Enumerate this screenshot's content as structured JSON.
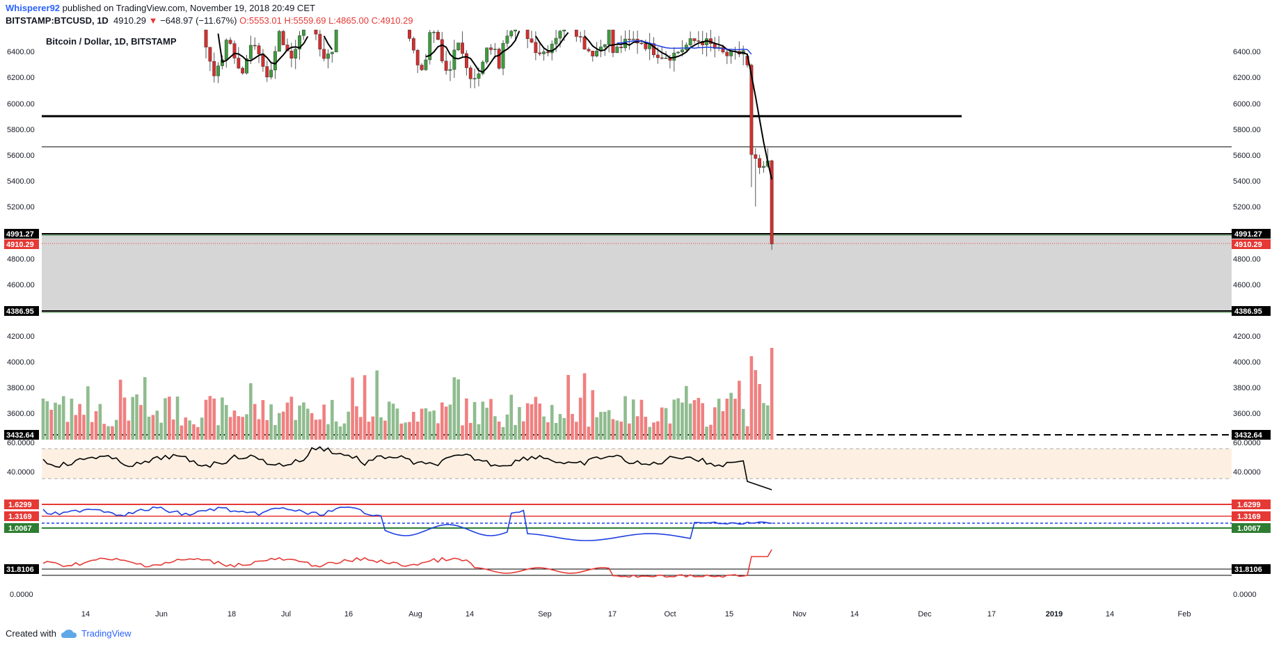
{
  "header": {
    "author": "Whisperer92",
    "published_text": "published on TradingView.com, November 19, 2018 20:49 CET",
    "symbol": "BITSTAMP:BTCUSD, 1D",
    "last": "4910.29",
    "change_arrow": "▼",
    "change": "−648.97 (−11.67%)",
    "open": "O:5553.01",
    "high": "H:5559.69",
    "low": "L:4865.00",
    "close": "C:4910.29"
  },
  "footer": {
    "created_with": "Created with",
    "brand": "TradingView",
    "logo_icon": "tradingview-cloud-icon"
  },
  "colors": {
    "up": "#8fbc8f",
    "down": "#f08080",
    "candle_up": "#3f9b3f",
    "candle_down": "#d32f2f",
    "ma_black": "#000000",
    "ma_blue": "#1e3fe0",
    "rsi_band": "#fdf0e2",
    "zone_gray": "#d6d6d6",
    "price_tag": "#e53935",
    "green_tag": "#2e7d32"
  },
  "chart_data": {
    "type": "candlestick",
    "title": "Bitcoin / Dollar, 1D, BITSTAMP",
    "x_labels": [
      "14",
      "Jun",
      "18",
      "Jul",
      "16",
      "Aug",
      "14",
      "Sep",
      "17",
      "Oct",
      "15",
      "Nov",
      "14",
      "Dec",
      "17",
      "2019",
      "14",
      "Feb"
    ],
    "price_axis_ticks": [
      "6400.00",
      "6200.00",
      "6000.00",
      "5800.00",
      "5600.00",
      "5400.00",
      "5200.00",
      "4800.00",
      "4600.00",
      "4200.00",
      "4000.00",
      "3800.00",
      "3600.00"
    ],
    "price_tags": {
      "resistance_low": "4991.27",
      "last_price": "4910.29",
      "support_bottom": "4386.95",
      "dashed_level": "3432.64"
    },
    "horizontal_levels": [
      5900,
      5660,
      4991.27,
      4386.95
    ],
    "recent_candles": [
      {
        "date": "2018-11-13",
        "open": 6360,
        "high": 6380,
        "low": 6270,
        "close": 6290
      },
      {
        "date": "2018-11-14",
        "open": 6290,
        "high": 6300,
        "low": 5350,
        "close": 5600
      },
      {
        "date": "2018-11-15",
        "open": 5600,
        "high": 5650,
        "low": 5200,
        "close": 5570
      },
      {
        "date": "2018-11-16",
        "open": 5570,
        "high": 5600,
        "low": 5450,
        "close": 5500
      },
      {
        "date": "2018-11-17",
        "open": 5500,
        "high": 5550,
        "low": 5460,
        "close": 5510
      },
      {
        "date": "2018-11-18",
        "open": 5510,
        "high": 5650,
        "low": 5500,
        "close": 5553.01
      },
      {
        "date": "2018-11-19",
        "open": 5553.01,
        "high": 5559.69,
        "low": 4865.0,
        "close": 4910.29
      }
    ],
    "rsi_panel": {
      "ticks": [
        "60.0000",
        "40.0000"
      ]
    },
    "ratio_panel": {
      "tags": [
        "1.6299",
        "1.3169",
        "1.0067"
      ]
    },
    "bottom_panel": {
      "tag": "31.8106",
      "ticks": [
        "0.0000"
      ]
    }
  }
}
